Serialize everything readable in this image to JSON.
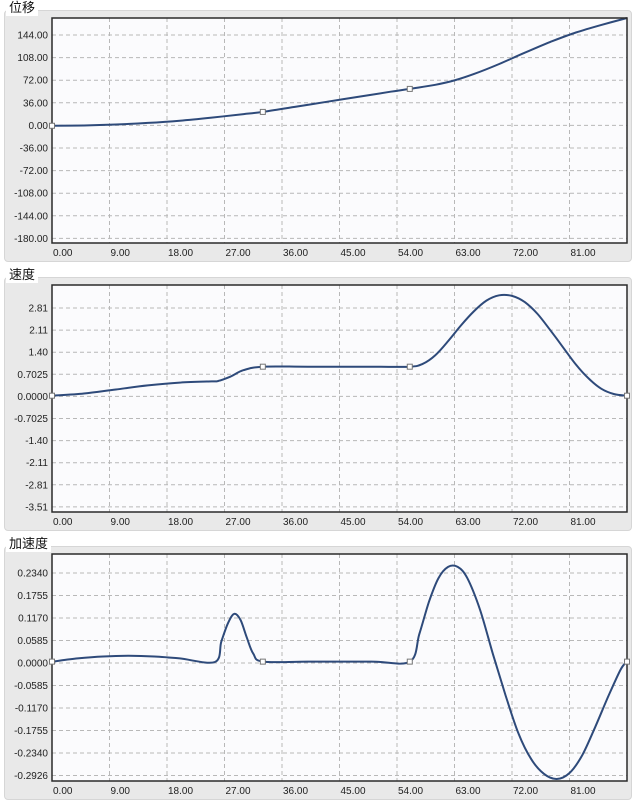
{
  "panels": [
    {
      "title": "位移"
    },
    {
      "title": "速度"
    },
    {
      "title": "加速度"
    }
  ],
  "colors": {
    "curve": "#2e4a7a",
    "grid": "#b8b8b8",
    "plot_bg": "#fbfbfd",
    "frame": "#2a2a2a",
    "panel_bg": "#e9e9e9",
    "marker_fill": "#ffffff",
    "marker_stroke": "#777777"
  },
  "chart_data": [
    {
      "type": "line",
      "title": "位移",
      "xlabel": "",
      "ylabel": "",
      "xlim": [
        0,
        90
      ],
      "ylim": [
        -186,
        171
      ],
      "grid": true,
      "x_ticks": [
        "0.00",
        "9.00",
        "18.00",
        "27.00",
        "36.00",
        "45.00",
        "54.00",
        "63.00",
        "72.00",
        "81.00"
      ],
      "y_ticks": [
        "144.00",
        "108.00",
        "72.00",
        "36.00",
        "0.00",
        "-36.00",
        "-72.00",
        "-108.00",
        "-144.00",
        "-180.00"
      ],
      "x": [
        0,
        5,
        10,
        15,
        20,
        25,
        30,
        33,
        38,
        43,
        48,
        53,
        56,
        60,
        63,
        66,
        70,
        74,
        78,
        82,
        86,
        90
      ],
      "values": [
        0,
        0.5,
        2,
        4.5,
        8,
        13,
        18.5,
        22,
        30,
        38,
        46,
        54,
        58.5,
        65,
        72,
        82,
        98,
        116,
        133,
        148,
        160,
        171
      ],
      "markers": [
        {
          "x": 0,
          "y": 0
        },
        {
          "x": 33,
          "y": 22
        },
        {
          "x": 56,
          "y": 58.5
        }
      ]
    },
    {
      "type": "line",
      "title": "速度",
      "xlabel": "",
      "ylabel": "",
      "xlim": [
        0,
        90
      ],
      "ylim": [
        -3.73,
        3.55
      ],
      "grid": true,
      "x_ticks": [
        "0.00",
        "9.00",
        "18.00",
        "27.00",
        "36.00",
        "45.00",
        "54.00",
        "63.00",
        "72.00",
        "81.00"
      ],
      "y_ticks": [
        "2.81",
        "2.11",
        "1.40",
        "0.7025",
        "0.0000",
        "-0.7025",
        "-1.40",
        "-2.11",
        "-2.81",
        "-3.51"
      ],
      "x": [
        0,
        5,
        10,
        15,
        20,
        25,
        26,
        28,
        30,
        33,
        40,
        50,
        56,
        58,
        60,
        62,
        64,
        66,
        68,
        70,
        72,
        74,
        76,
        78,
        80,
        82,
        84,
        86,
        88,
        90
      ],
      "values": [
        0,
        0.07,
        0.2,
        0.33,
        0.42,
        0.46,
        0.47,
        0.62,
        0.82,
        0.93,
        0.93,
        0.93,
        0.93,
        1.02,
        1.3,
        1.75,
        2.25,
        2.7,
        3.05,
        3.22,
        3.2,
        3.0,
        2.62,
        2.1,
        1.55,
        1.0,
        0.55,
        0.22,
        0.05,
        0.0
      ],
      "markers": [
        {
          "x": 0,
          "y": 0
        },
        {
          "x": 33,
          "y": 0.93
        },
        {
          "x": 56,
          "y": 0.93
        },
        {
          "x": 90,
          "y": 0
        }
      ]
    },
    {
      "type": "line",
      "title": "加速度",
      "xlabel": "",
      "ylabel": "",
      "xlim": [
        0,
        90
      ],
      "ylim": [
        -0.3,
        0.2705
      ],
      "grid": true,
      "x_ticks": [
        "0.00",
        "9.00",
        "18.00",
        "27.00",
        "36.00",
        "45.00",
        "54.00",
        "63.00",
        "72.00",
        "81.00"
      ],
      "y_ticks": [
        "0.2340",
        "0.1755",
        "0.1170",
        "0.0585",
        "0.0000",
        "-0.0585",
        "-0.1170",
        "-0.1755",
        "-0.2340",
        "-0.2926"
      ],
      "x": [
        0,
        4,
        8,
        12,
        16,
        20,
        25.5,
        26.5,
        27.5,
        28.5,
        29.5,
        30.5,
        31.5,
        33,
        40,
        50,
        56,
        57.5,
        59,
        60.5,
        62,
        63.5,
        65,
        67,
        69,
        71,
        73,
        75,
        77,
        79,
        81,
        83,
        85,
        87,
        89,
        90
      ],
      "values": [
        0,
        0.008,
        0.013,
        0.015,
        0.013,
        0.008,
        -0.001,
        0.05,
        0.095,
        0.12,
        0.105,
        0.06,
        0.02,
        0.0,
        0.0,
        0.0,
        0.0,
        0.07,
        0.15,
        0.21,
        0.238,
        0.238,
        0.21,
        0.13,
        0.02,
        -0.085,
        -0.18,
        -0.245,
        -0.282,
        -0.295,
        -0.28,
        -0.235,
        -0.165,
        -0.09,
        -0.02,
        0.0
      ],
      "markers": [
        {
          "x": 0,
          "y": 0
        },
        {
          "x": 33,
          "y": 0
        },
        {
          "x": 56,
          "y": 0
        },
        {
          "x": 90,
          "y": 0
        }
      ]
    }
  ]
}
